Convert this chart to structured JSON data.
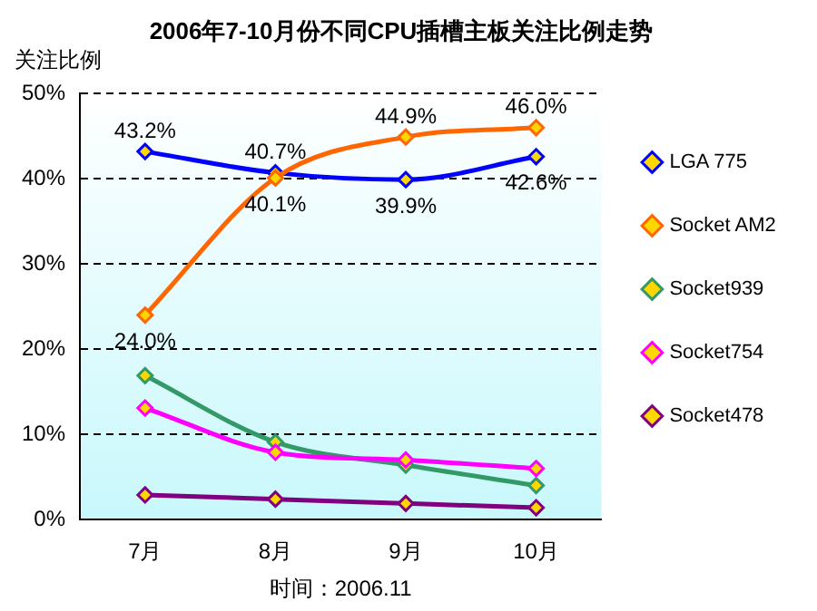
{
  "chart_data": {
    "type": "line",
    "title": "2006年7-10月份不同CPU插槽主板关注比例走势",
    "ylabel": "关注比例",
    "categories": [
      "7月",
      "8月",
      "9月",
      "10月"
    ],
    "series": [
      {
        "name": "LGA 775",
        "color": "#0000ff",
        "values": [
          43.2,
          40.7,
          39.9,
          42.6
        ],
        "value_labels": [
          "43.2%",
          "40.7%",
          "39.9%",
          "42.6%"
        ]
      },
      {
        "name": "Socket AM2",
        "color": "#ff6600",
        "values": [
          24.0,
          40.1,
          44.9,
          46.0
        ],
        "value_labels": [
          "24.0%",
          "40.1%",
          "44.9%",
          "46.0%"
        ]
      },
      {
        "name": "Socket939",
        "color": "#339966",
        "values": [
          16.9,
          9.1,
          6.4,
          4.0
        ]
      },
      {
        "name": "Socket754",
        "color": "#ff00ff",
        "values": [
          13.1,
          7.9,
          7.0,
          6.0
        ]
      },
      {
        "name": "Socket478",
        "color": "#800080",
        "values": [
          2.9,
          2.4,
          1.9,
          1.4
        ]
      }
    ],
    "ylim": [
      0,
      50
    ],
    "yticks": [
      {
        "value": 0,
        "label": "0%"
      },
      {
        "value": 10,
        "label": "10%"
      },
      {
        "value": 20,
        "label": "20%"
      },
      {
        "value": 30,
        "label": "30%"
      },
      {
        "value": 40,
        "label": "40%"
      },
      {
        "value": 50,
        "label": "50%"
      }
    ],
    "grid": "y",
    "legend": "right",
    "marker": "diamond",
    "line_style": "solid",
    "annotations": [
      "时间：2006.11"
    ]
  }
}
